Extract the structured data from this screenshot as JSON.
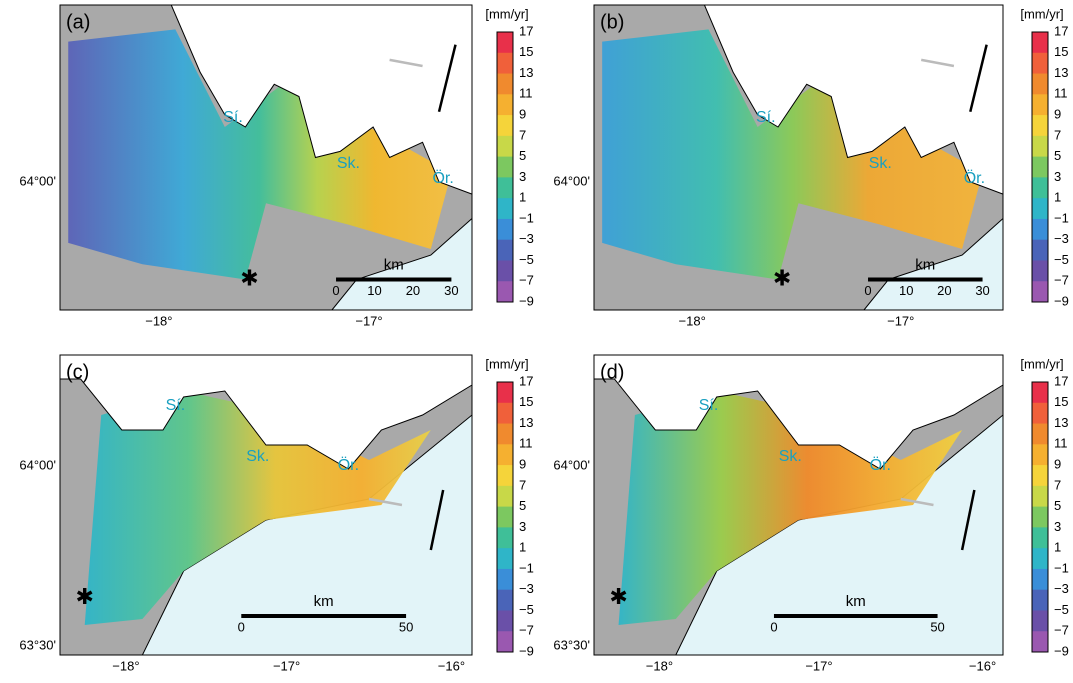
{
  "panels": [
    {
      "label": "(a)",
      "unit": "[mm/yr]",
      "colorbar_ticks": [
        "17",
        "15",
        "13",
        "11",
        "9",
        "7",
        "5",
        "3",
        "1",
        "−1",
        "−3",
        "−5",
        "−7",
        "−9"
      ],
      "lat_ticks": [
        "64°00'"
      ],
      "lon_ticks": [
        "−18°",
        "−17°"
      ],
      "places": [
        "Sí.",
        "Sk.",
        "Ör."
      ],
      "scale_unit": "km",
      "scale_ticks": [
        "0",
        "10",
        "20",
        "30"
      ]
    },
    {
      "label": "(b)",
      "unit": "[mm/yr]",
      "colorbar_ticks": [
        "17",
        "15",
        "13",
        "11",
        "9",
        "7",
        "5",
        "3",
        "1",
        "−1",
        "−3",
        "−5",
        "−7",
        "−9"
      ],
      "lat_ticks": [
        "64°00'"
      ],
      "lon_ticks": [
        "−18°",
        "−17°"
      ],
      "places": [
        "Sí.",
        "Sk.",
        "Ör."
      ],
      "scale_unit": "km",
      "scale_ticks": [
        "0",
        "10",
        "20",
        "30"
      ]
    },
    {
      "label": "(c)",
      "unit": "[mm/yr]",
      "colorbar_ticks": [
        "17",
        "15",
        "13",
        "11",
        "9",
        "7",
        "5",
        "3",
        "1",
        "−1",
        "−3",
        "−5",
        "−7",
        "−9"
      ],
      "lat_ticks": [
        "64°00'",
        "63°30'"
      ],
      "lon_ticks": [
        "−18°",
        "−17°",
        "−16°"
      ],
      "places": [
        "Sí.",
        "Sk.",
        "Ör."
      ],
      "scale_unit": "km",
      "scale_ticks": [
        "0",
        "50"
      ]
    },
    {
      "label": "(d)",
      "unit": "[mm/yr]",
      "colorbar_ticks": [
        "17",
        "15",
        "13",
        "11",
        "9",
        "7",
        "5",
        "3",
        "1",
        "−1",
        "−3",
        "−5",
        "−7",
        "−9"
      ],
      "lat_ticks": [
        "64°00'",
        "63°30'"
      ],
      "lon_ticks": [
        "−18°",
        "−17°",
        "−16°"
      ],
      "places": [
        "Sí.",
        "Sk.",
        "Ör."
      ],
      "scale_unit": "km",
      "scale_ticks": [
        "0",
        "50"
      ]
    }
  ]
}
